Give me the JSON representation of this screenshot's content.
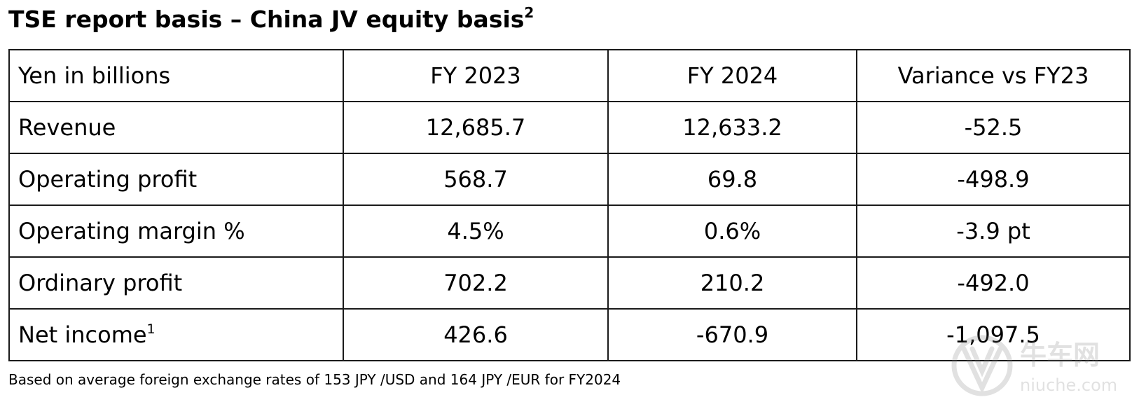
{
  "title": {
    "text": "TSE report basis – China JV equity basis",
    "superscript": "2"
  },
  "table": {
    "header": [
      "Yen in billions",
      "FY 2023",
      "FY 2024",
      "Variance vs FY23"
    ],
    "rows": [
      {
        "label": "Revenue",
        "label_sup": "",
        "fy2023": "12,685.7",
        "fy2024": "12,633.2",
        "variance": "-52.5"
      },
      {
        "label": "Operating profit",
        "label_sup": "",
        "fy2023": "568.7",
        "fy2024": "69.8",
        "variance": "-498.9"
      },
      {
        "label": "Operating margin %",
        "label_sup": "",
        "fy2023": "4.5%",
        "fy2024": "0.6%",
        "variance": "-3.9 pt"
      },
      {
        "label": "Ordinary profit",
        "label_sup": "",
        "fy2023": "702.2",
        "fy2024": "210.2",
        "variance": "-492.0"
      },
      {
        "label": "Net income",
        "label_sup": "1",
        "fy2023": "426.6",
        "fy2024": "-670.9",
        "variance": "-1,097.5"
      }
    ]
  },
  "footnote": "Based on average foreign exchange rates of 153 JPY /USD and 164 JPY /EUR for FY2024",
  "watermark": {
    "brand": "牛车网",
    "site": "niuche.com",
    "icon": "niuche-logo-icon"
  },
  "colors": {
    "text": "#000000",
    "border": "#1a1a1a",
    "watermark": "#7a7a7a"
  }
}
